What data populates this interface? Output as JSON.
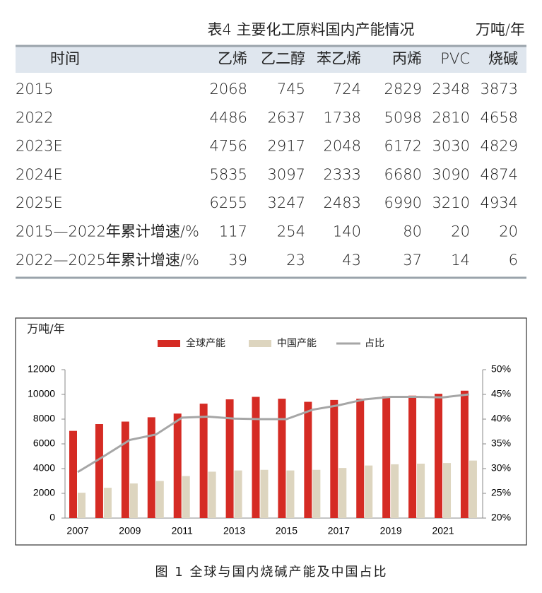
{
  "table": {
    "title": "表4  主要化工原料国内产能情况",
    "unit": "万吨/年",
    "header": [
      "时间",
      "乙烯",
      "乙二醇",
      "苯乙烯",
      "丙烯",
      "PVC",
      "烧碱"
    ],
    "rows": [
      [
        "2015",
        2068,
        745,
        724,
        2829,
        2348,
        3873
      ],
      [
        "2022",
        4486,
        2637,
        1738,
        5098,
        2810,
        4658
      ],
      [
        "2023E",
        4756,
        2917,
        2048,
        6172,
        3030,
        4829
      ],
      [
        "2024E",
        5835,
        3097,
        2333,
        6680,
        3090,
        4874
      ],
      [
        "2025E",
        6255,
        3247,
        2483,
        6990,
        3210,
        4934
      ],
      [
        "2015—2022年累计增速/%",
        117,
        254,
        140,
        80,
        20,
        20
      ],
      [
        "2022—2025年累计增速/%",
        39,
        23,
        43,
        37,
        14,
        6
      ]
    ]
  },
  "chart_data": {
    "type": "bar",
    "y_label": "万吨/年",
    "categories": [
      "2007",
      null,
      "2009",
      null,
      "2011",
      null,
      "2013",
      null,
      "2015",
      null,
      "2017",
      null,
      "2019",
      null,
      "2021",
      null
    ],
    "series": [
      {
        "name": "全球产能",
        "type": "bar",
        "color": "#d52b24",
        "values": [
          7050,
          7600,
          7800,
          8150,
          8450,
          9250,
          9600,
          9800,
          9650,
          9400,
          9550,
          9650,
          9850,
          9900,
          10050,
          10300
        ]
      },
      {
        "name": "中国产能",
        "type": "bar",
        "color": "#ddd5bf",
        "values": [
          2050,
          2450,
          2800,
          3000,
          3400,
          3750,
          3850,
          3900,
          3850,
          3900,
          4050,
          4250,
          4350,
          4400,
          4450,
          4650
        ]
      },
      {
        "name": "占比",
        "type": "line",
        "axis": "y2",
        "color": "#a6a6a6",
        "values": [
          29.3,
          32.5,
          35.8,
          36.9,
          40.3,
          40.5,
          40.1,
          40.0,
          40.0,
          41.9,
          42.8,
          44.0,
          44.5,
          44.5,
          44.4,
          45.0
        ]
      }
    ],
    "ylim": [
      0,
      12000
    ],
    "yticks": [
      0,
      2000,
      4000,
      6000,
      8000,
      10000,
      12000
    ],
    "y2lim": [
      20,
      50
    ],
    "y2ticks": [
      {
        "value": 20,
        "label": "20%"
      },
      {
        "value": 25,
        "label": "25%"
      },
      {
        "value": 30,
        "label": "30%"
      },
      {
        "value": 35,
        "label": "35%"
      },
      {
        "value": 40,
        "label": "40%"
      },
      {
        "value": 45,
        "label": "45%"
      },
      {
        "value": 50,
        "label": "50%"
      }
    ],
    "legend": "top"
  },
  "caption": "图 1  全球与国内烧碱产能及中国占比"
}
